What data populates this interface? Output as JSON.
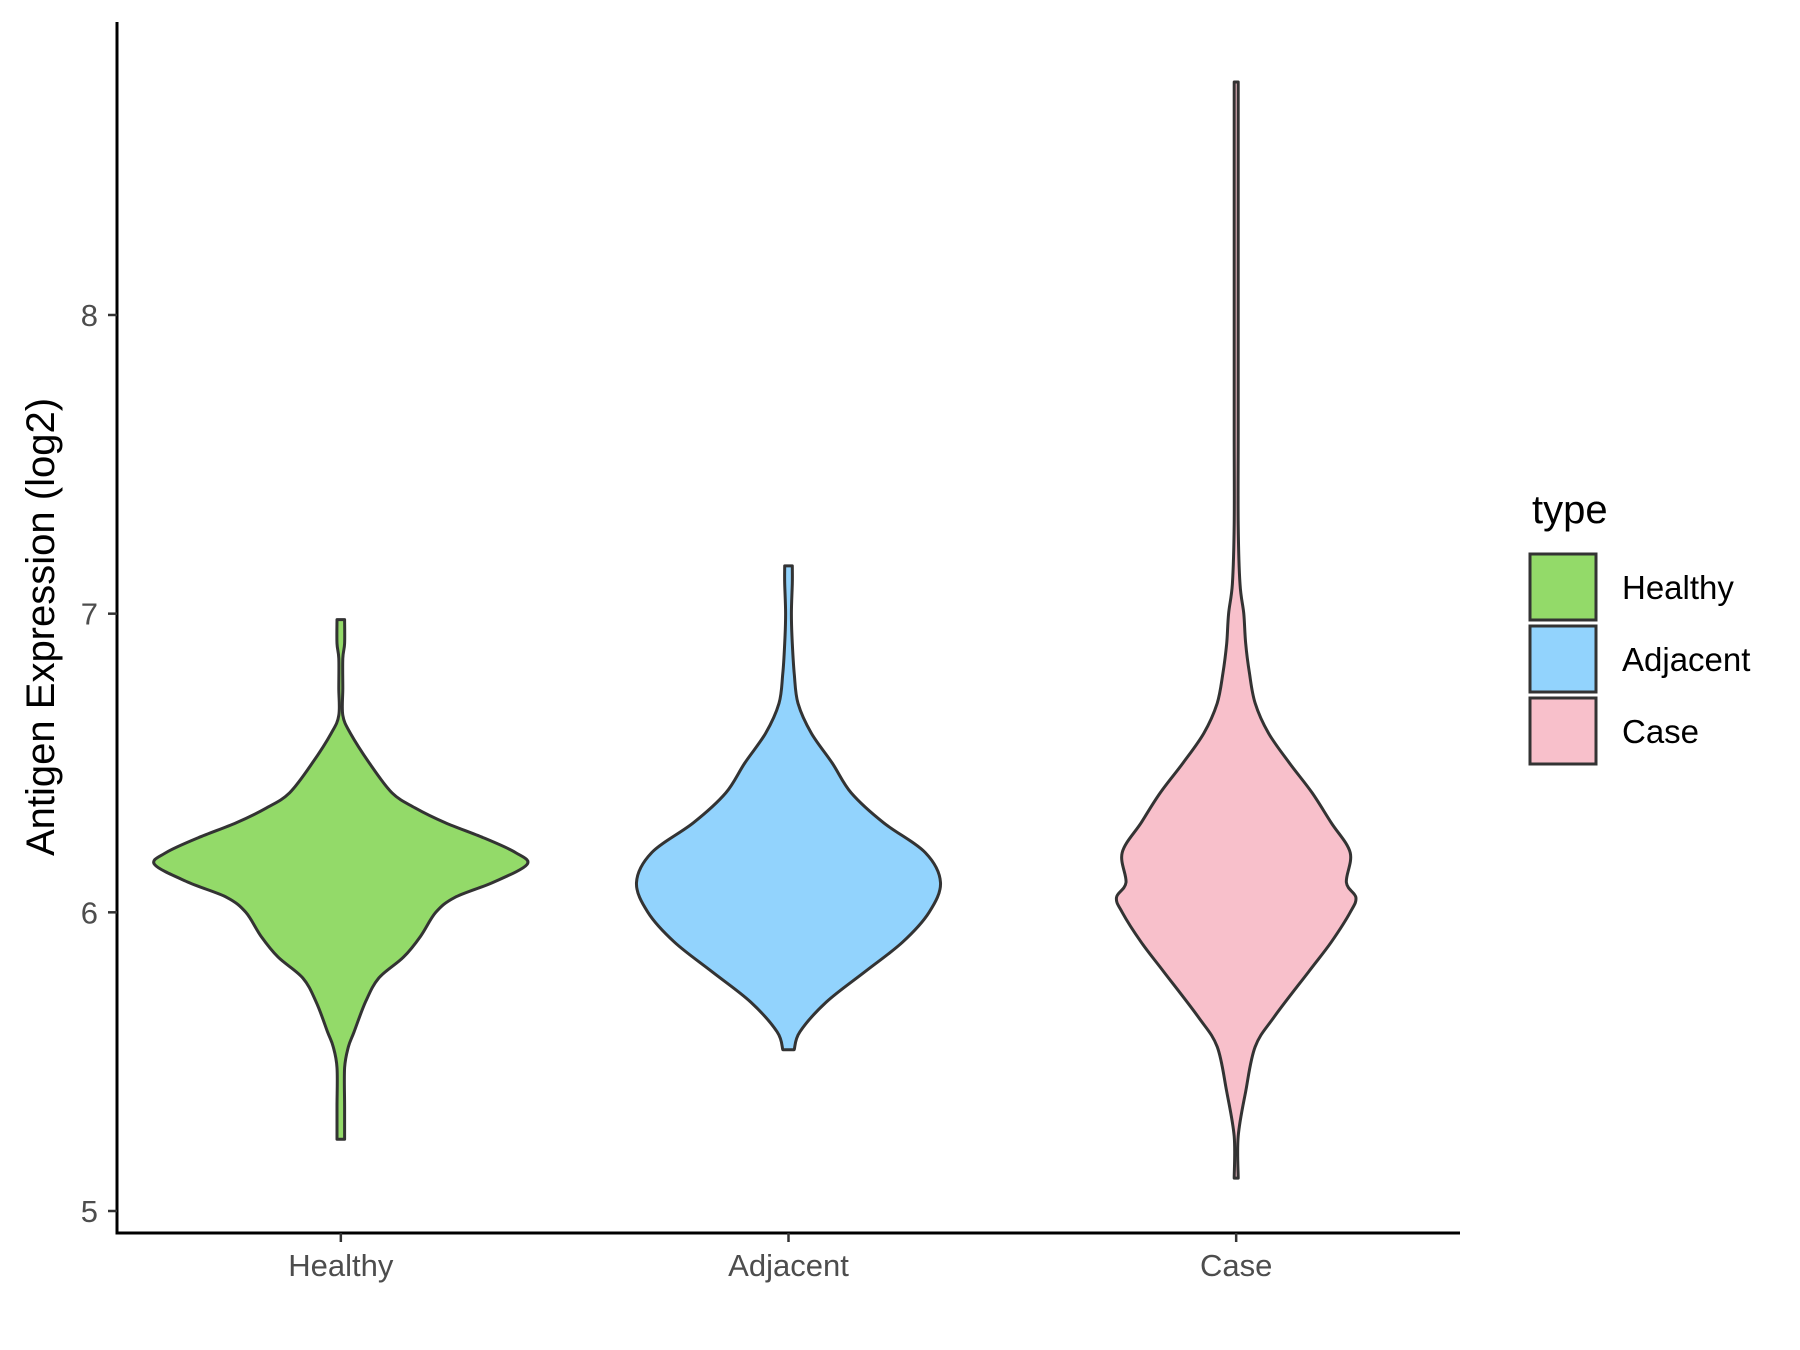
{
  "chart_data": {
    "type": "violin",
    "title": "",
    "xlabel": "",
    "ylabel": "Antigen Expression (log2)",
    "ylim": [
      4.94,
      8.98
    ],
    "yticks": [
      5,
      6,
      7,
      8
    ],
    "categories": [
      "Healthy",
      "Adjacent",
      "Case"
    ],
    "grid": false,
    "legend": {
      "title": "type",
      "placement": "right",
      "entries": [
        "Healthy",
        "Adjacent",
        "Case"
      ]
    },
    "series": [
      {
        "category": "Healthy",
        "color": "#93DA69",
        "ymin": 5.24,
        "ymax": 6.98,
        "density": [
          [
            5.24,
            0.02
          ],
          [
            5.35,
            0.02
          ],
          [
            5.48,
            0.02
          ],
          [
            5.55,
            0.04
          ],
          [
            5.6,
            0.07
          ],
          [
            5.7,
            0.13
          ],
          [
            5.78,
            0.2
          ],
          [
            5.85,
            0.33
          ],
          [
            5.92,
            0.42
          ],
          [
            6.0,
            0.5
          ],
          [
            6.05,
            0.6
          ],
          [
            6.1,
            0.8
          ],
          [
            6.16,
            0.98
          ],
          [
            6.2,
            0.92
          ],
          [
            6.25,
            0.75
          ],
          [
            6.3,
            0.55
          ],
          [
            6.35,
            0.39
          ],
          [
            6.4,
            0.27
          ],
          [
            6.5,
            0.15
          ],
          [
            6.6,
            0.05
          ],
          [
            6.66,
            0.01
          ],
          [
            6.75,
            0.01
          ],
          [
            6.85,
            0.01
          ],
          [
            6.9,
            0.02
          ],
          [
            6.98,
            0.02
          ]
        ]
      },
      {
        "category": "Adjacent",
        "color": "#92D3FD",
        "ymin": 5.54,
        "ymax": 7.16,
        "density": [
          [
            5.54,
            0.03
          ],
          [
            5.6,
            0.06
          ],
          [
            5.7,
            0.2
          ],
          [
            5.8,
            0.4
          ],
          [
            5.9,
            0.6
          ],
          [
            6.0,
            0.74
          ],
          [
            6.1,
            0.8
          ],
          [
            6.2,
            0.72
          ],
          [
            6.3,
            0.5
          ],
          [
            6.4,
            0.33
          ],
          [
            6.5,
            0.23
          ],
          [
            6.6,
            0.12
          ],
          [
            6.7,
            0.05
          ],
          [
            6.8,
            0.03
          ],
          [
            6.9,
            0.02
          ],
          [
            7.0,
            0.015
          ],
          [
            7.1,
            0.02
          ],
          [
            7.16,
            0.02
          ]
        ]
      },
      {
        "category": "Case",
        "color": "#F8C0CB",
        "ymin": 5.11,
        "ymax": 8.78,
        "density": [
          [
            5.11,
            0.0
          ],
          [
            5.25,
            0.01
          ],
          [
            5.4,
            0.05
          ],
          [
            5.55,
            0.1
          ],
          [
            5.65,
            0.2
          ],
          [
            5.8,
            0.38
          ],
          [
            5.9,
            0.5
          ],
          [
            6.0,
            0.6
          ],
          [
            6.05,
            0.63
          ],
          [
            6.1,
            0.58
          ],
          [
            6.2,
            0.6
          ],
          [
            6.3,
            0.5
          ],
          [
            6.4,
            0.4
          ],
          [
            6.5,
            0.28
          ],
          [
            6.6,
            0.17
          ],
          [
            6.7,
            0.1
          ],
          [
            6.8,
            0.07
          ],
          [
            6.9,
            0.05
          ],
          [
            7.0,
            0.04
          ],
          [
            7.1,
            0.02
          ],
          [
            7.3,
            0.01
          ],
          [
            7.6,
            0.005
          ],
          [
            8.0,
            0.005
          ],
          [
            8.4,
            0.004
          ],
          [
            8.78,
            0.004
          ]
        ]
      }
    ]
  }
}
